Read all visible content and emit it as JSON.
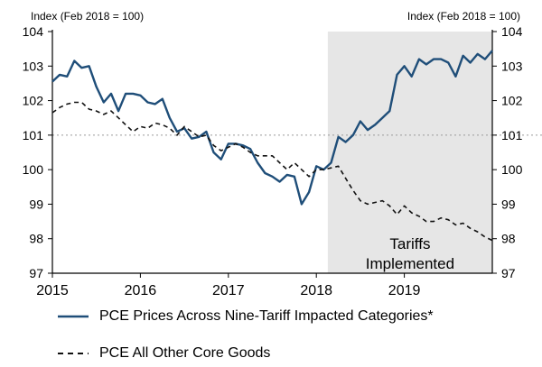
{
  "chart_data": {
    "type": "line",
    "title": "",
    "left_axis_label": "Index (Feb 2018 = 100)",
    "right_axis_label": "Index (Feb 2018 = 100)",
    "xlim": [
      2015.0,
      2020.0
    ],
    "ylim": [
      97,
      104
    ],
    "x_ticks": [
      2015,
      2016,
      2017,
      2018,
      2019
    ],
    "x_tick_labels": [
      "2015",
      "2016",
      "2017",
      "2018",
      "2019"
    ],
    "y_ticks": [
      97,
      98,
      99,
      100,
      101,
      102,
      103,
      104
    ],
    "y_tick_labels": [
      "97",
      "98",
      "99",
      "100",
      "101",
      "102",
      "103",
      "104"
    ],
    "reference_line": 101,
    "shaded_region": {
      "x_start": 2018.13,
      "x_end": 2020.0,
      "label_line1": "Tariffs",
      "label_line2": "Implemented"
    },
    "series": [
      {
        "name": "PCE Prices Across Nine-Tariff Impacted Categories*",
        "style": "solid",
        "color": "#1f4e79",
        "x": [
          2015.0,
          2015.083,
          2015.167,
          2015.25,
          2015.333,
          2015.417,
          2015.5,
          2015.583,
          2015.667,
          2015.75,
          2015.833,
          2015.917,
          2016.0,
          2016.083,
          2016.167,
          2016.25,
          2016.333,
          2016.417,
          2016.5,
          2016.583,
          2016.667,
          2016.75,
          2016.833,
          2016.917,
          2017.0,
          2017.083,
          2017.167,
          2017.25,
          2017.333,
          2017.417,
          2017.5,
          2017.583,
          2017.667,
          2017.75,
          2017.833,
          2017.917,
          2018.0,
          2018.083,
          2018.167,
          2018.25,
          2018.333,
          2018.417,
          2018.5,
          2018.583,
          2018.667,
          2018.75,
          2018.833,
          2018.917,
          2019.0,
          2019.083,
          2019.167,
          2019.25,
          2019.333,
          2019.417,
          2019.5,
          2019.583,
          2019.667,
          2019.75,
          2019.833,
          2019.917,
          2020.0
        ],
        "values": [
          102.55,
          102.75,
          102.7,
          103.15,
          102.95,
          103.0,
          102.4,
          101.95,
          102.2,
          101.7,
          102.2,
          102.2,
          102.15,
          101.95,
          101.9,
          102.05,
          101.5,
          101.1,
          101.2,
          100.9,
          100.95,
          101.1,
          100.5,
          100.3,
          100.75,
          100.75,
          100.7,
          100.6,
          100.2,
          99.9,
          99.8,
          99.65,
          99.85,
          99.8,
          99.0,
          99.35,
          100.1,
          100.0,
          100.2,
          100.95,
          100.8,
          101.0,
          101.4,
          101.15,
          101.3,
          101.5,
          101.7,
          102.75,
          103.0,
          102.7,
          103.2,
          103.05,
          103.2,
          103.2,
          103.1,
          102.7,
          103.3,
          103.1,
          103.35,
          103.2,
          103.45
        ]
      },
      {
        "name": "PCE All Other Core Goods",
        "style": "dashed",
        "color": "#111111",
        "x": [
          2015.0,
          2015.083,
          2015.167,
          2015.25,
          2015.333,
          2015.417,
          2015.5,
          2015.583,
          2015.667,
          2015.75,
          2015.833,
          2015.917,
          2016.0,
          2016.083,
          2016.167,
          2016.25,
          2016.333,
          2016.417,
          2016.5,
          2016.583,
          2016.667,
          2016.75,
          2016.833,
          2016.917,
          2017.0,
          2017.083,
          2017.167,
          2017.25,
          2017.333,
          2017.417,
          2017.5,
          2017.583,
          2017.667,
          2017.75,
          2017.833,
          2017.917,
          2018.0,
          2018.083,
          2018.167,
          2018.25,
          2018.333,
          2018.417,
          2018.5,
          2018.583,
          2018.667,
          2018.75,
          2018.833,
          2018.917,
          2019.0,
          2019.083,
          2019.167,
          2019.25,
          2019.333,
          2019.417,
          2019.5,
          2019.583,
          2019.667,
          2019.75,
          2019.833,
          2019.917,
          2020.0
        ],
        "values": [
          101.65,
          101.8,
          101.9,
          101.95,
          101.95,
          101.75,
          101.7,
          101.6,
          101.7,
          101.5,
          101.3,
          101.1,
          101.25,
          101.2,
          101.35,
          101.3,
          101.2,
          101.0,
          101.25,
          101.1,
          100.95,
          101.0,
          100.7,
          100.55,
          100.65,
          100.75,
          100.65,
          100.5,
          100.4,
          100.4,
          100.4,
          100.2,
          100.0,
          100.2,
          100.0,
          99.8,
          100.0,
          100.0,
          100.05,
          100.1,
          99.75,
          99.4,
          99.1,
          99.0,
          99.05,
          99.1,
          98.95,
          98.7,
          98.95,
          98.75,
          98.65,
          98.5,
          98.5,
          98.6,
          98.55,
          98.4,
          98.45,
          98.3,
          98.2,
          98.05,
          97.95
        ]
      }
    ],
    "legend": {
      "position": "bottom",
      "items": [
        {
          "label": "PCE Prices Across Nine-Tariff Impacted Categories*",
          "style": "solid"
        },
        {
          "label": "PCE All Other Core Goods",
          "style": "dashed"
        }
      ]
    }
  }
}
